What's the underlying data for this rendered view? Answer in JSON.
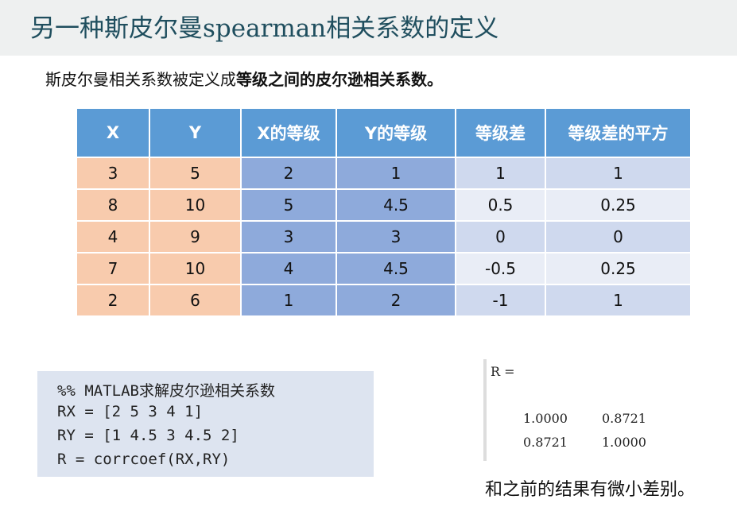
{
  "header": {
    "title": "另一种斯皮尔曼spearman相关系数的定义"
  },
  "intro": {
    "text": "斯皮尔曼相关系数被定义成",
    "bold": "等级之间的皮尔逊相关系数。"
  },
  "table": {
    "columns": [
      "X",
      "Y",
      "X的等级",
      "Y的等级",
      "等级差",
      "等级差的平方"
    ],
    "rows": [
      [
        "3",
        "5",
        "2",
        "1",
        "1",
        "1"
      ],
      [
        "8",
        "10",
        "5",
        "4.5",
        "0.5",
        "0.25"
      ],
      [
        "4",
        "9",
        "3",
        "3",
        "0",
        "0"
      ],
      [
        "7",
        "10",
        "4",
        "4.5",
        "-0.5",
        "0.25"
      ],
      [
        "2",
        "6",
        "1",
        "2",
        "-1",
        "1"
      ]
    ]
  },
  "code": {
    "lines": [
      "%% MATLAB求解皮尔逊相关系数",
      "RX = [2 5 3 4 1]",
      "RY = [1 4.5 3 4.5 2]",
      "R = corrcoef(RX,RY)"
    ]
  },
  "output": {
    "label": "R =",
    "matrix": [
      [
        "1.0000",
        "0.8721"
      ],
      [
        "0.8721",
        "1.0000"
      ]
    ]
  },
  "conclusion": "和之前的结果有微小差别。"
}
